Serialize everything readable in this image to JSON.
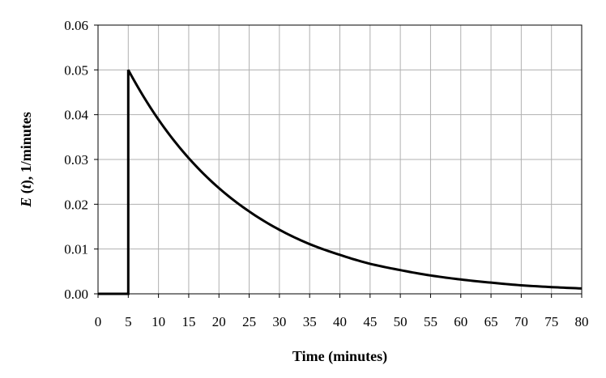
{
  "chart_data": {
    "type": "line",
    "xlabel": "Time (minutes)",
    "ylabel_italic": "E",
    "ylabel_var": "t",
    "ylabel_unit": ", 1/minutes",
    "xlim": [
      0,
      80
    ],
    "ylim": [
      0,
      0.06
    ],
    "x_ticks": [
      0,
      5,
      10,
      15,
      20,
      25,
      30,
      35,
      40,
      45,
      50,
      55,
      60,
      65,
      70,
      75,
      80
    ],
    "y_ticks": [
      0,
      0.01,
      0.02,
      0.03,
      0.04,
      0.05,
      0.06
    ],
    "y_tick_labels": [
      "0.00",
      "0.01",
      "0.02",
      "0.03",
      "0.04",
      "0.05",
      "0.06"
    ],
    "grid": true,
    "series": [
      {
        "color": "#000000",
        "x": [
          0,
          5,
          5,
          10,
          15,
          20,
          25,
          30,
          35,
          40,
          45,
          50,
          55,
          60,
          65,
          70,
          75,
          80
        ],
        "y": [
          0,
          0,
          0.05,
          0.0389,
          0.0303,
          0.0236,
          0.0184,
          0.0143,
          0.0111,
          0.0087,
          0.0067,
          0.0053,
          0.0041,
          0.0032,
          0.0025,
          0.0019,
          0.0015,
          0.0012
        ]
      }
    ]
  }
}
